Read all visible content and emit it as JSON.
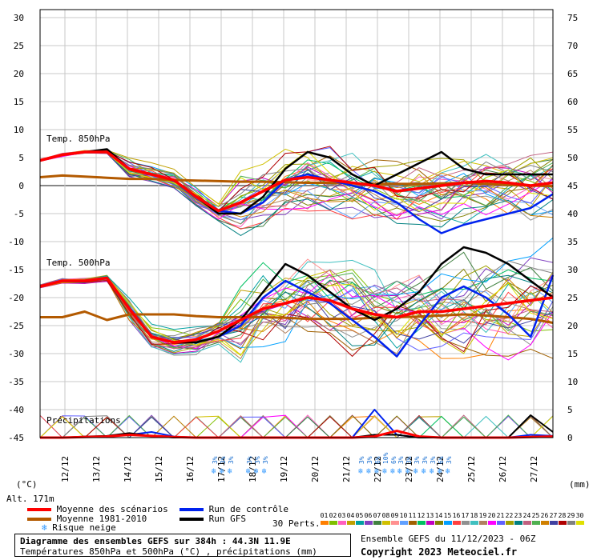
{
  "chart_data": {
    "type": "line",
    "title": "Diagramme des ensembles GEFS sur 384h : 44.3N 11.9E",
    "subtitle": "Températures 850hPa et 500hPa (°C) , précipitations (mm)",
    "left_axis": {
      "unit": "(°C)",
      "ticks": [
        30,
        25,
        20,
        15,
        10,
        5,
        0,
        -5,
        -10,
        -15,
        -20,
        -25,
        -30,
        -35,
        -40,
        -45
      ]
    },
    "right_axis": {
      "unit": "(mm)",
      "ticks": [
        75,
        70,
        65,
        60,
        55,
        50,
        45,
        40,
        35,
        30,
        25,
        20,
        15,
        10,
        5,
        0
      ]
    },
    "dates": [
      "12/12",
      "13/12",
      "14/12",
      "15/12",
      "16/12",
      "17/12",
      "18/12",
      "19/12",
      "20/12",
      "21/12",
      "22/12",
      "23/12",
      "24/12",
      "25/12",
      "26/12",
      "27/12"
    ],
    "altitude": "Alt. 171m",
    "panel_labels": {
      "t850": "Temp. 850hPa",
      "t500": "Temp. 500hPa",
      "precip": "Précipitations"
    },
    "t850": {
      "mean": [
        4.5,
        5.5,
        6,
        6,
        3,
        2,
        1,
        -2,
        -4.5,
        -3,
        -1,
        1,
        1.5,
        1,
        0.5,
        0,
        -1,
        -0.5,
        0,
        0.5,
        0.8,
        0.5,
        0,
        0.5
      ],
      "control": [
        4.5,
        5.5,
        6,
        6,
        3,
        2,
        1,
        -2,
        -4.5,
        -5,
        -3,
        1,
        2,
        1,
        0,
        -1,
        -3,
        -6,
        -8.5,
        -7,
        -6,
        -5,
        -4,
        -1.5
      ],
      "gfs": [
        4.5,
        5.5,
        6,
        6.5,
        3,
        2,
        1,
        -2,
        -5,
        -5,
        -2,
        3,
        6,
        5,
        2,
        0,
        2,
        4,
        6,
        3,
        2,
        2,
        2,
        2
      ],
      "climo": [
        1.5,
        1.8,
        1.6,
        1.4,
        1.2,
        1.2,
        1.0,
        0.9,
        0.8,
        0.7,
        0.7,
        0.6,
        0.5,
        0.5,
        0.4,
        0.3,
        0.3,
        0.3,
        0.4,
        0.5,
        0.3,
        0.1,
        0.0,
        -0.1
      ]
    },
    "t500": {
      "mean": [
        -18,
        -17,
        -17,
        -16.5,
        -22,
        -27,
        -28,
        -27.5,
        -26,
        -24,
        -22,
        -21,
        -20,
        -20.5,
        -22,
        -23,
        -23.5,
        -22.5,
        -22.5,
        -22,
        -21.5,
        -21,
        -20.5,
        -20
      ],
      "control": [
        -18,
        -17,
        -17,
        -16.5,
        -22,
        -27,
        -28,
        -28,
        -27,
        -25,
        -20,
        -17,
        -19,
        -21,
        -24,
        -27,
        -30.5,
        -25,
        -20,
        -18,
        -20,
        -23,
        -27,
        -16
      ],
      "gfs": [
        -18,
        -17,
        -17,
        -16.5,
        -22,
        -27,
        -28,
        -28,
        -27,
        -24,
        -19,
        -14,
        -16,
        -19,
        -22,
        -24,
        -22,
        -19,
        -14,
        -11,
        -12,
        -14,
        -17,
        -20
      ],
      "climo": [
        -23.5,
        -23.5,
        -22.5,
        -24,
        -23,
        -23,
        -23,
        -23.3,
        -23.5,
        -23.5,
        -23.5,
        -23.6,
        -23.8,
        -23.8,
        -23.8,
        -23.6,
        -23.5,
        -23.4,
        -23.2,
        -23,
        -23.2,
        -23.5,
        -23.8,
        -24.5
      ]
    },
    "precip": {
      "mean": [
        0,
        0,
        0.1,
        0.2,
        0.5,
        0.3,
        0.1,
        0,
        0,
        0,
        0,
        0,
        0,
        0,
        0,
        0.2,
        1.2,
        0.2,
        0,
        0,
        0,
        0,
        0.1,
        0.2
      ],
      "control": [
        0,
        0,
        0.1,
        0.2,
        0.5,
        1.0,
        0.2,
        0,
        0,
        0,
        0,
        0,
        0,
        0,
        0,
        5,
        0.5,
        0,
        0,
        0,
        0,
        0,
        0.5,
        0.3
      ],
      "gfs": [
        0,
        0,
        0.2,
        0.3,
        0.8,
        0.3,
        0,
        0,
        0,
        0,
        0,
        0,
        0,
        0,
        0,
        0.5,
        0.5,
        0,
        0,
        0,
        0,
        0,
        4,
        1
      ]
    },
    "snow_risk": [
      {
        "date_index": 5.15,
        "pcts": [
          "3%",
          "3%",
          "3%"
        ]
      },
      {
        "date_index": 6.25,
        "pcts": [
          "3%",
          "3%",
          "3%"
        ]
      },
      {
        "date_index": 9.85,
        "pcts": [
          "3%",
          "3%",
          "6%",
          "10%",
          "6%"
        ]
      },
      {
        "date_index": 11.1,
        "pcts": [
          "3%",
          "3%",
          "3%",
          "3%",
          "3%",
          "6%",
          "3%"
        ]
      }
    ]
  },
  "legend": {
    "mean_label": "Moyenne des scénarios",
    "climo_label": "Moyenne 1981-2010",
    "snow_label": "Risque neige",
    "control_label": "Run de contrôle",
    "gfs_label": "Run GFS",
    "perts_label": "30 Perts.",
    "pert_numbers": [
      "01",
      "02",
      "03",
      "04",
      "05",
      "06",
      "07",
      "08",
      "09",
      "10",
      "11",
      "12",
      "13",
      "14",
      "15",
      "16",
      "17",
      "18",
      "19",
      "20",
      "21",
      "22",
      "23",
      "24",
      "25",
      "26",
      "27",
      "28",
      "29",
      "30"
    ],
    "colors": {
      "mean": "#ff0000",
      "climo": "#b35a00",
      "control": "#0022ee",
      "gfs": "#000000"
    }
  },
  "info": {
    "ensemble": "Ensemble GEFS du 11/12/2023 - 06Z",
    "copyright": "Copyright 2023 Meteociel.fr"
  },
  "pert_colors": [
    "#ff7f00",
    "#7fbf00",
    "#ff5fbf",
    "#c0a000",
    "#00a0a0",
    "#8040c0",
    "#408040",
    "#d0c000",
    "#ff9090",
    "#60a0ff",
    "#a06000",
    "#00c060",
    "#c000c0",
    "#808000",
    "#00a0ff",
    "#ff4040",
    "#909090",
    "#40c0c0",
    "#b08060",
    "#ff00ff",
    "#6060ff",
    "#a0a000",
    "#008080",
    "#c06080",
    "#50b050",
    "#d08000",
    "#4040a0",
    "#b00000",
    "#808080",
    "#e0e000"
  ]
}
